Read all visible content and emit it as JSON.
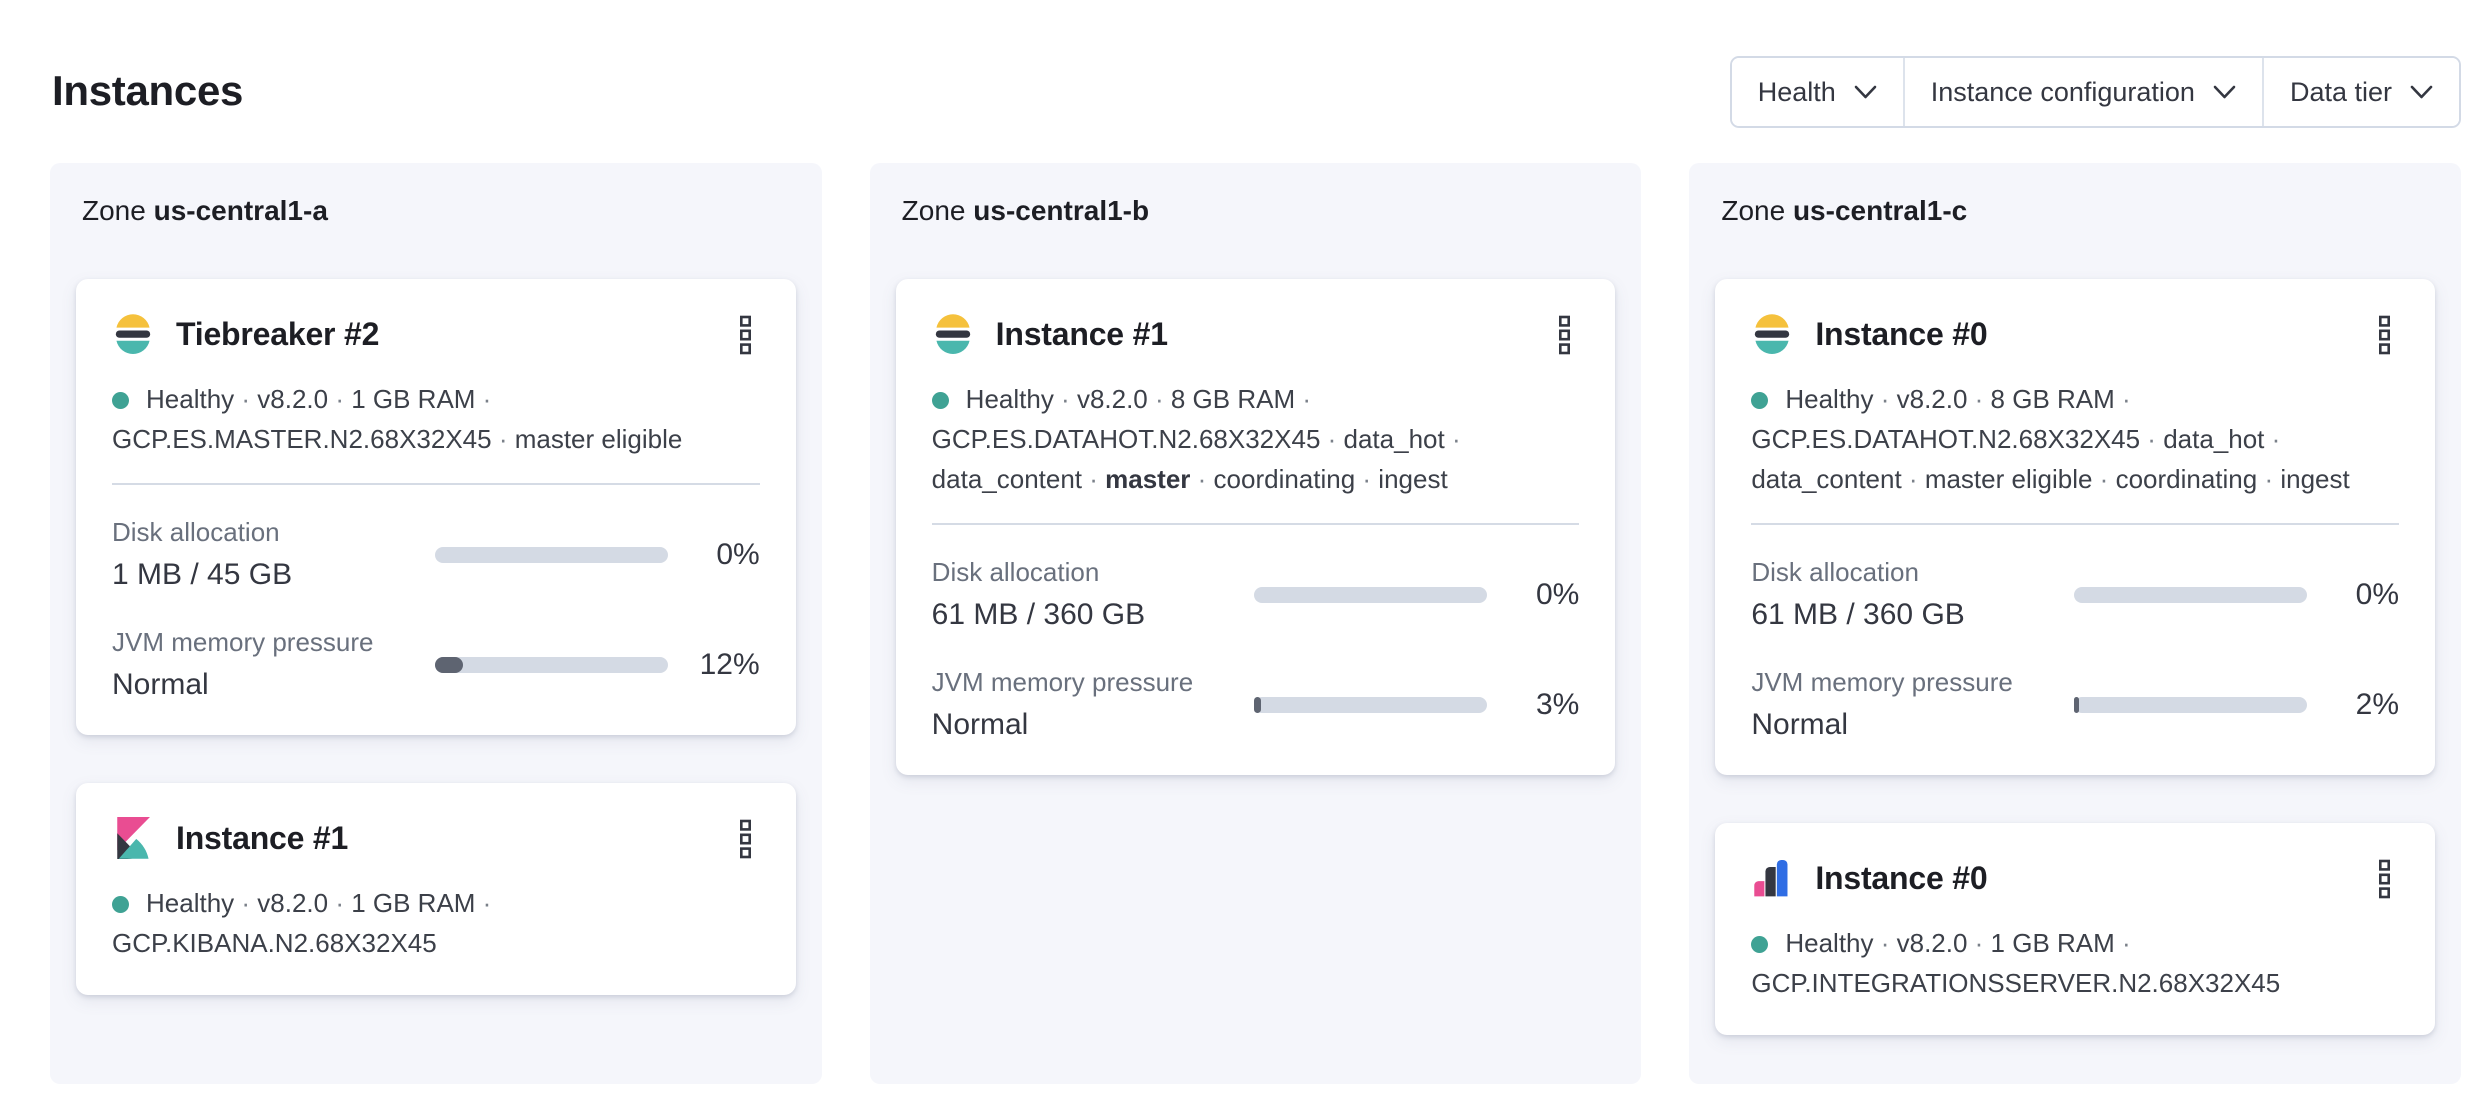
{
  "page": {
    "title": "Instances"
  },
  "filters": [
    {
      "label": "Health"
    },
    {
      "label": "Instance configuration"
    },
    {
      "label": "Data tier"
    }
  ],
  "zones": [
    {
      "zone_word": "Zone",
      "name": "us-central1-a",
      "cards": [
        {
          "title": "Tiebreaker #2",
          "logo": "elasticsearch-logo",
          "status_tokens": [
            {
              "text": "Healthy"
            },
            {
              "text": "v8.2.0"
            },
            {
              "text": "1 GB RAM"
            },
            {
              "text": "GCP.ES.MASTER.N2.68X32X45"
            },
            {
              "text": "master eligible"
            }
          ],
          "metrics": [
            {
              "label": "Disk allocation",
              "value": "1 MB / 45 GB",
              "percent": 0,
              "percent_label": "0%"
            },
            {
              "label": "JVM memory pressure",
              "value": "Normal",
              "percent": 12,
              "percent_label": "12%"
            }
          ]
        },
        {
          "title": "Instance #1",
          "logo": "kibana-logo",
          "status_tokens": [
            {
              "text": "Healthy"
            },
            {
              "text": "v8.2.0"
            },
            {
              "text": "1 GB RAM"
            },
            {
              "text": "GCP.KIBANA.N2.68X32X45"
            }
          ],
          "metrics": []
        }
      ]
    },
    {
      "zone_word": "Zone",
      "name": "us-central1-b",
      "cards": [
        {
          "title": "Instance #1",
          "logo": "elasticsearch-logo",
          "status_tokens": [
            {
              "text": "Healthy"
            },
            {
              "text": "v8.2.0"
            },
            {
              "text": "8 GB RAM"
            },
            {
              "text": "GCP.ES.DATAHOT.N2.68X32X45"
            },
            {
              "text": "data_hot"
            },
            {
              "text": "data_content"
            },
            {
              "text": "master",
              "bold": true
            },
            {
              "text": "coordinating"
            },
            {
              "text": "ingest"
            }
          ],
          "metrics": [
            {
              "label": "Disk allocation",
              "value": "61 MB / 360 GB",
              "percent": 0,
              "percent_label": "0%"
            },
            {
              "label": "JVM memory pressure",
              "value": "Normal",
              "percent": 3,
              "percent_label": "3%"
            }
          ]
        }
      ]
    },
    {
      "zone_word": "Zone",
      "name": "us-central1-c",
      "cards": [
        {
          "title": "Instance #0",
          "logo": "elasticsearch-logo",
          "status_tokens": [
            {
              "text": "Healthy"
            },
            {
              "text": "v8.2.0"
            },
            {
              "text": "8 GB RAM"
            },
            {
              "text": "GCP.ES.DATAHOT.N2.68X32X45"
            },
            {
              "text": "data_hot"
            },
            {
              "text": "data_content"
            },
            {
              "text": "master eligible"
            },
            {
              "text": "coordinating"
            },
            {
              "text": "ingest"
            }
          ],
          "metrics": [
            {
              "label": "Disk allocation",
              "value": "61 MB / 360 GB",
              "percent": 0,
              "percent_label": "0%"
            },
            {
              "label": "JVM memory pressure",
              "value": "Normal",
              "percent": 2,
              "percent_label": "2%"
            }
          ]
        },
        {
          "title": "Instance #0",
          "logo": "integrations-server-logo",
          "status_tokens": [
            {
              "text": "Healthy"
            },
            {
              "text": "v8.2.0"
            },
            {
              "text": "1 GB RAM"
            },
            {
              "text": "GCP.INTEGRATIONSSERVER.N2.68X32X45"
            }
          ],
          "metrics": []
        }
      ]
    }
  ],
  "icons": {
    "filter_chevron": "chevron-down-icon",
    "card_menu": "boxes-vertical-icon",
    "health": "health-dot"
  },
  "colors": {
    "panel_bg": "#F5F6FB",
    "border": "#D3DAE6",
    "health_dot": "#3FA294",
    "bar_track": "#D4DAE4",
    "bar_fill": "#5E6471",
    "dark_text": "#343741",
    "muted_text": "#69707D",
    "es_yellow": "#F5C13C",
    "es_teal": "#4AB7AD",
    "kibana_pink": "#E94D92",
    "integrations_blue": "#2F6DE4"
  }
}
